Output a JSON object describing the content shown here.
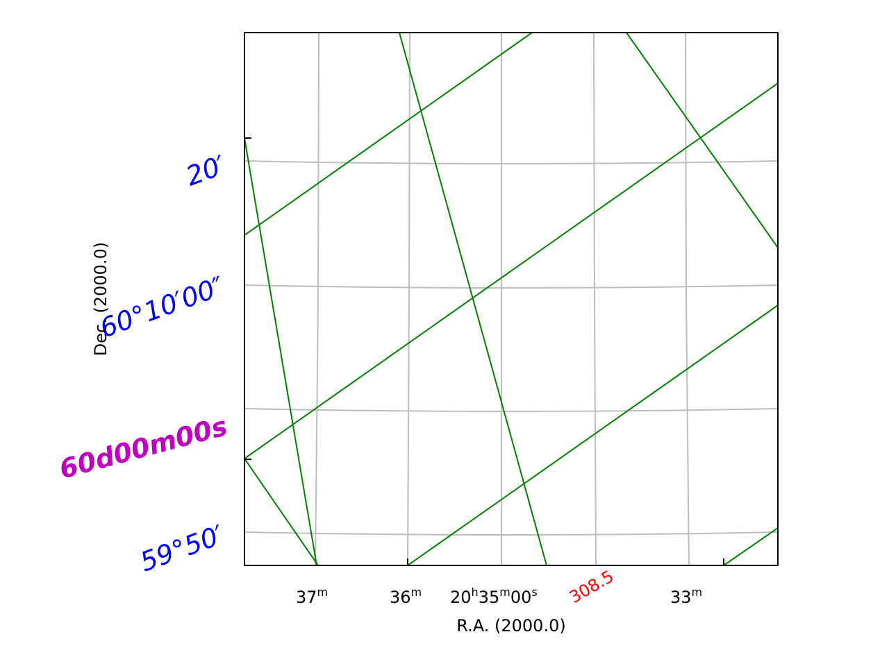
{
  "chart_data": {
    "type": "line",
    "title": "",
    "xlabel": "R.A. (2000.0)",
    "ylabel": "Dec. (2000.0)",
    "x_tick_labels": [
      {
        "base": "37",
        "sup": "m"
      },
      {
        "base": "36",
        "sup": "m"
      },
      {
        "base": "20",
        "sup": "h",
        "base2": "35",
        "sup2": "m",
        "base3": "00",
        "sup3": "s"
      },
      {
        "base": "33",
        "sup": "m"
      }
    ],
    "y_tick_labels": [
      "20′",
      "60°10′00″",
      "59°50′"
    ],
    "y_special_label": "60d00m00s",
    "galactic_label": "308.5",
    "grid": true,
    "colors": {
      "grid": "#bdbdbd",
      "overlay": "#008000",
      "dec_labels": "#0000ff",
      "special_label": "#bf00bf",
      "galactic_label": "#ff0000",
      "frame": "#000000"
    }
  }
}
